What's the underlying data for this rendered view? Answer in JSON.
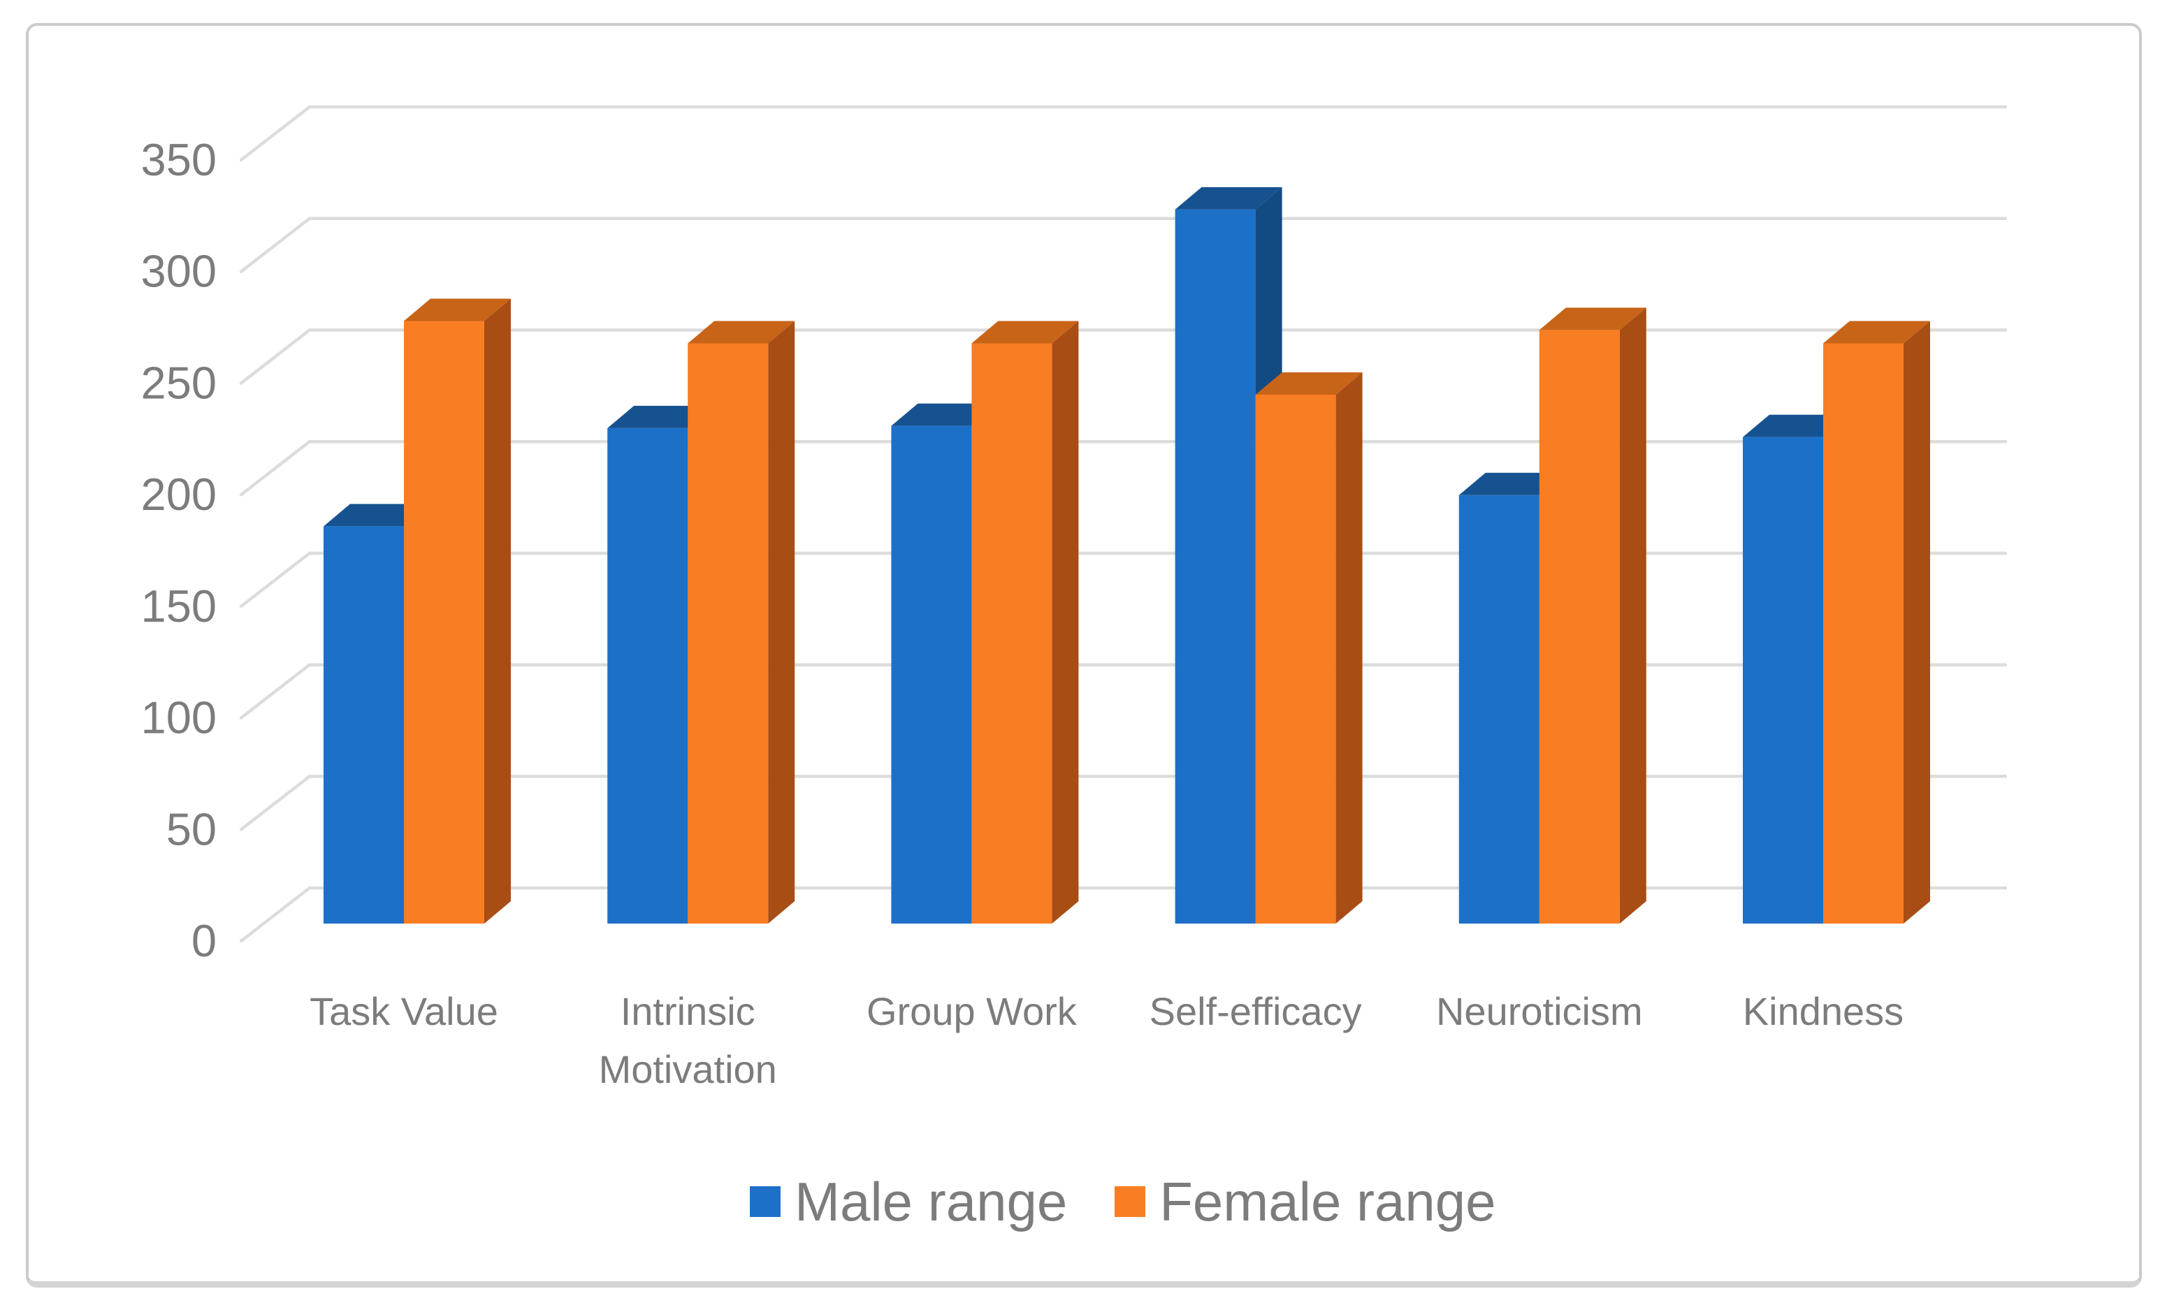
{
  "figure": {
    "background": "#FFFFFF",
    "frame_color": "#CBCBCB",
    "text_color": "#7C7C7C",
    "gridline_color": "#DCDCDC"
  },
  "chart_data": {
    "type": "bar",
    "subtype": "3d-clustered-column",
    "title": "",
    "xlabel": "",
    "ylabel": "",
    "categories": [
      "Task Value",
      "Intrinsic Motivation",
      "Group Work",
      "Self-efficacy",
      "Neuroticism",
      "Kindness"
    ],
    "series": [
      {
        "name": "Male range",
        "color": "#1D70C8",
        "color_top": "#16528F",
        "color_side": "#124A82",
        "values": [
          178,
          222,
          223,
          320,
          192,
          218
        ]
      },
      {
        "name": "Female range",
        "color": "#F97D23",
        "color_top": "#C86418",
        "color_side": "#A84E15",
        "values": [
          270,
          260,
          260,
          237,
          266,
          260
        ]
      }
    ],
    "ylim": [
      0,
      350
    ],
    "ytick_step": 50,
    "yticks": [
      0,
      50,
      100,
      150,
      200,
      250,
      300,
      350
    ],
    "grid": "on",
    "legend_position": "bottom"
  }
}
